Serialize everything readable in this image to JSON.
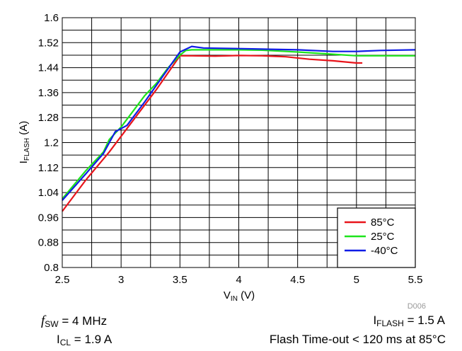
{
  "chart_data": {
    "type": "line",
    "title": "",
    "xlabel": {
      "main": "V",
      "sub": "IN",
      "unit": " (V)"
    },
    "ylabel": {
      "main": "I",
      "sub": "FLASH",
      "unit": " (A)"
    },
    "xlim": [
      2.5,
      5.5
    ],
    "ylim": [
      0.8,
      1.6
    ],
    "xticks": [
      "2.5",
      "3",
      "3.5",
      "4",
      "4.5",
      "5",
      "5.5"
    ],
    "yticks": [
      "0.8",
      "0.88",
      "0.96",
      "1.04",
      "1.12",
      "1.2",
      "1.28",
      "1.36",
      "1.44",
      "1.52",
      "1.6"
    ],
    "grid": true,
    "legend_position": "bottom-right",
    "figure_id": "D006",
    "series": [
      {
        "name": "85°C",
        "color": "#e8141b",
        "x": [
          2.5,
          2.7,
          2.9,
          3.1,
          3.3,
          3.5,
          3.6,
          3.8,
          4.0,
          4.2,
          4.4,
          4.6,
          4.8,
          5.0,
          5.05
        ],
        "y": [
          0.98,
          1.08,
          1.17,
          1.27,
          1.37,
          1.478,
          1.478,
          1.477,
          1.479,
          1.478,
          1.475,
          1.467,
          1.462,
          1.455,
          1.455
        ]
      },
      {
        "name": "25°C",
        "color": "#1ee41c",
        "x": [
          2.5,
          2.7,
          2.85,
          2.9,
          3.0,
          3.1,
          3.2,
          3.3,
          3.4,
          3.5,
          3.55,
          3.6,
          3.8,
          4.0,
          4.2,
          4.5,
          4.8,
          5.0,
          5.2,
          5.5
        ],
        "y": [
          1.02,
          1.11,
          1.17,
          1.21,
          1.25,
          1.3,
          1.35,
          1.39,
          1.44,
          1.48,
          1.495,
          1.497,
          1.497,
          1.497,
          1.496,
          1.49,
          1.483,
          1.478,
          1.478,
          1.478
        ]
      },
      {
        "name": "-40°C",
        "color": "#0f1ce6",
        "x": [
          2.5,
          2.7,
          2.85,
          2.95,
          3.05,
          3.2,
          3.35,
          3.5,
          3.6,
          3.7,
          4.0,
          4.5,
          4.8,
          5.0,
          5.2,
          5.5
        ],
        "y": [
          1.015,
          1.1,
          1.165,
          1.235,
          1.255,
          1.33,
          1.41,
          1.49,
          1.508,
          1.503,
          1.501,
          1.497,
          1.492,
          1.492,
          1.495,
          1.497
        ]
      }
    ]
  },
  "conditions": {
    "fsw": {
      "symbol": "f",
      "sub": "SW",
      "value": " = 4 MHz"
    },
    "icl": {
      "main": "I",
      "sub": "CL",
      "value": " = 1.9 A"
    },
    "iflash": {
      "main": "I",
      "sub": "FLASH",
      "value": " = 1.5 A"
    },
    "timeout": "Flash Time-out < 120 ms at 85°C"
  }
}
